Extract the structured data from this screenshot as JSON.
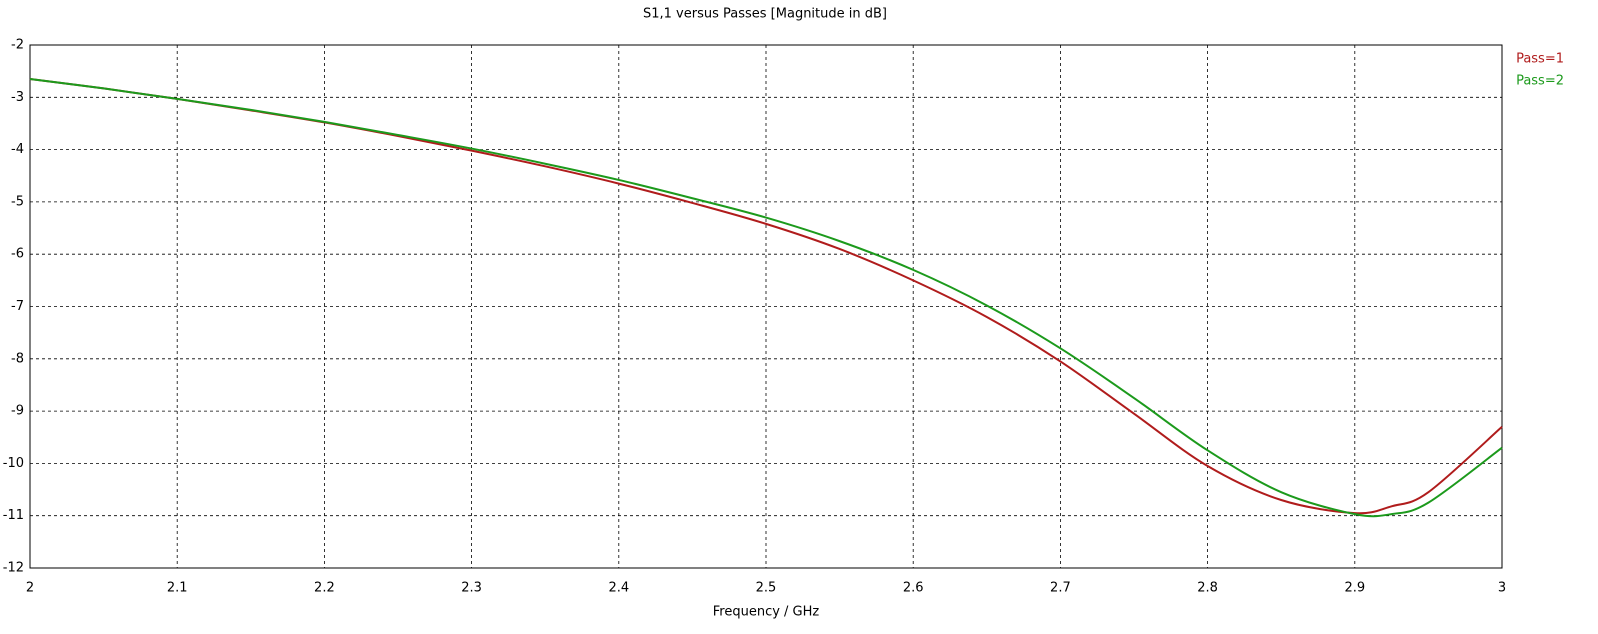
{
  "chart_data": {
    "type": "line",
    "title": "S1,1 versus Passes [Magnitude in dB]",
    "x_label": "Frequency / GHz",
    "x": [
      2.0,
      2.05,
      2.1,
      2.15,
      2.2,
      2.25,
      2.3,
      2.35,
      2.4,
      2.45,
      2.5,
      2.55,
      2.6,
      2.65,
      2.7,
      2.75,
      2.8,
      2.85,
      2.9,
      2.925,
      2.95,
      3.0
    ],
    "series": [
      {
        "name": "Pass=1",
        "color": "#b01c1c",
        "values": [
          -2.65,
          -2.83,
          -3.03,
          -3.25,
          -3.48,
          -3.74,
          -4.02,
          -4.32,
          -4.65,
          -5.02,
          -5.42,
          -5.9,
          -6.5,
          -7.2,
          -8.05,
          -9.05,
          -10.05,
          -10.7,
          -10.95,
          -10.82,
          -10.55,
          -9.3
        ]
      },
      {
        "name": "Pass=2",
        "color": "#1c9a1c",
        "values": [
          -2.65,
          -2.83,
          -3.03,
          -3.24,
          -3.47,
          -3.72,
          -3.98,
          -4.27,
          -4.58,
          -4.93,
          -5.3,
          -5.75,
          -6.3,
          -6.98,
          -7.8,
          -8.75,
          -9.75,
          -10.55,
          -10.97,
          -10.97,
          -10.75,
          -9.7
        ]
      }
    ],
    "xlim": [
      2,
      3
    ],
    "xticks": [
      2,
      2.1,
      2.2,
      2.3,
      2.4,
      2.5,
      2.6,
      2.7,
      2.8,
      2.9,
      3
    ],
    "ylim": [
      -12,
      -2
    ],
    "yticks": [
      -2,
      -3,
      -4,
      -5,
      -6,
      -7,
      -8,
      -9,
      -10,
      -11,
      -12
    ],
    "grid": true,
    "legend": "top-right"
  }
}
